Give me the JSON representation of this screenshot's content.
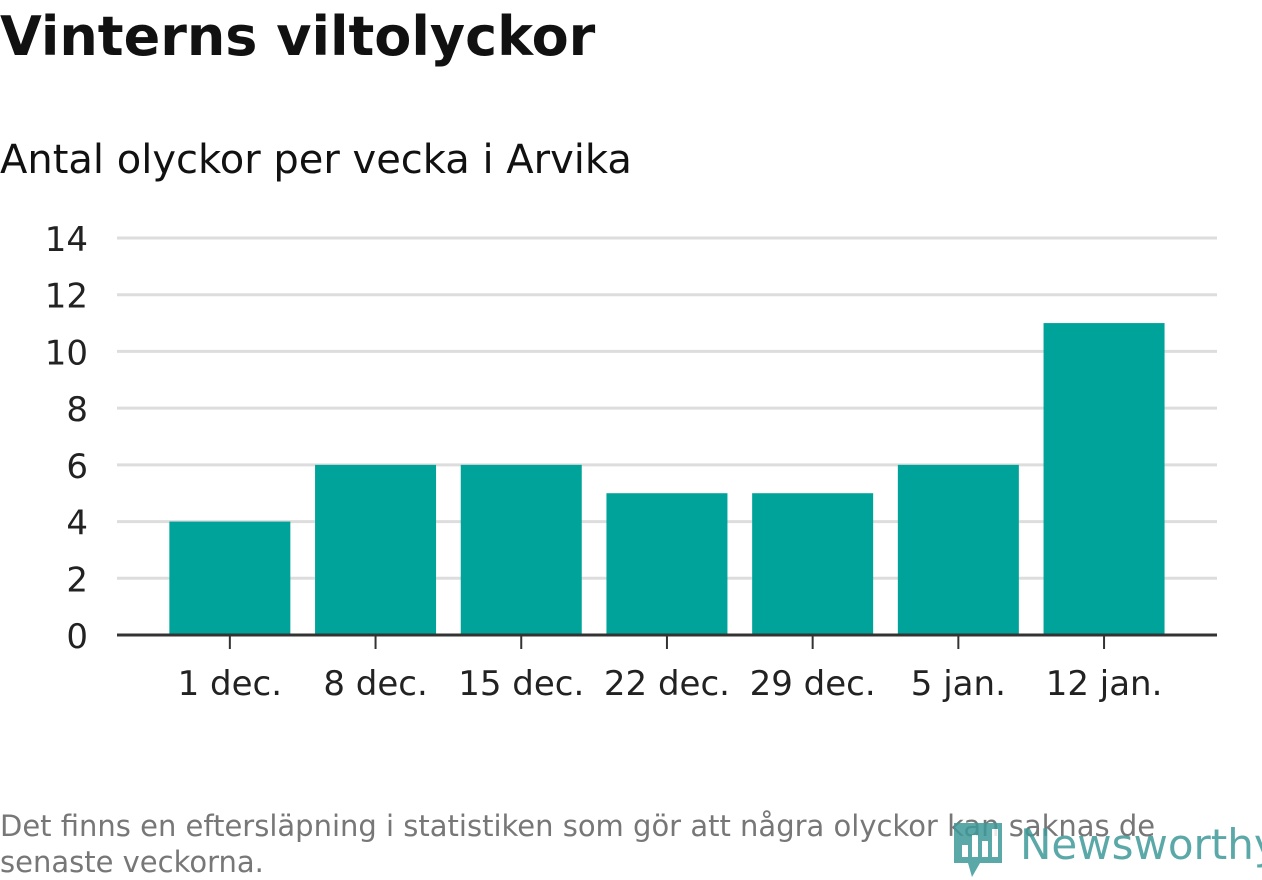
{
  "title": "Vinterns viltolyckor",
  "subtitle": "Antal olyckor per vecka i Arvika",
  "footnote": "Det finns en eftersläpning i statistiken som gör att några olyckor kan saknas de senaste veckorna.",
  "logo": {
    "text": "Newsworthy",
    "icon": "newsworthy-chart-icon"
  },
  "colors": {
    "bar": "#00a39a",
    "grid": "#dddddd",
    "axis": "#333333",
    "text": "#111111",
    "footnote": "#777777",
    "logo": "#3f9a9a"
  },
  "chart_data": {
    "type": "bar",
    "categories": [
      "1 dec.",
      "8 dec.",
      "15 dec.",
      "22 dec.",
      "29 dec.",
      "5 jan.",
      "12 jan."
    ],
    "values": [
      4,
      6,
      6,
      5,
      5,
      6,
      11
    ],
    "title": "Vinterns viltolyckor",
    "subtitle": "Antal olyckor per vecka i Arvika",
    "xlabel": "",
    "ylabel": "",
    "ylim": [
      0,
      14
    ],
    "yticks": [
      0,
      2,
      4,
      6,
      8,
      10,
      12,
      14
    ],
    "grid": true,
    "legend": "none"
  }
}
